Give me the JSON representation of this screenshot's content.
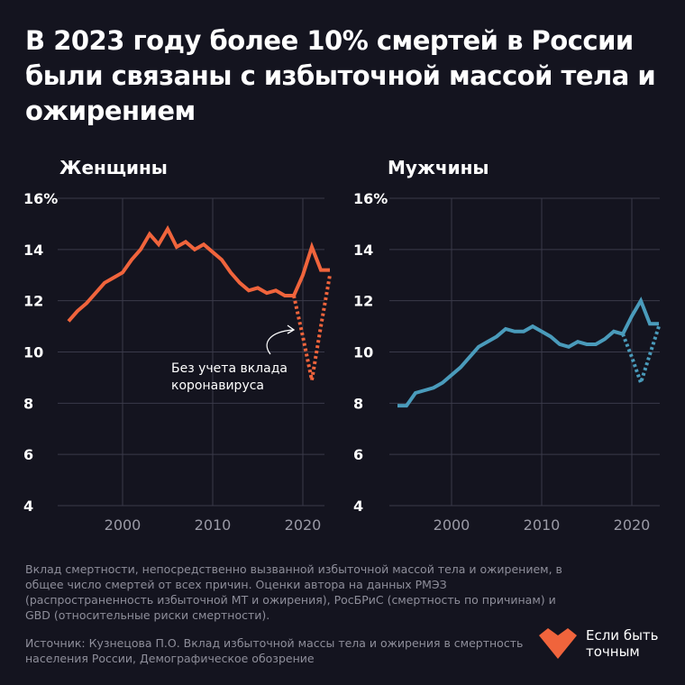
{
  "title": "В 2023 году более 10% смертей в России были связаны с избыточной массой тела и ожирением",
  "colors": {
    "background": "#14141f",
    "women": "#f0643c",
    "men": "#4a9bbb",
    "grid": "#3a3a4a"
  },
  "chart_data": [
    {
      "type": "line",
      "title": "Женщины",
      "ylim": [
        4,
        16
      ],
      "yticks": [
        "16%",
        "14",
        "12",
        "10",
        "8",
        "6",
        "4"
      ],
      "xticks": [
        "2000",
        "2010",
        "2020"
      ],
      "grid": true,
      "annotation": "Без учета вклада коронавируса",
      "series": [
        {
          "style": "solid",
          "x": [
            1994,
            1995,
            1996,
            1997,
            1998,
            1999,
            2000,
            2001,
            2002,
            2003,
            2004,
            2005,
            2006,
            2007,
            2008,
            2009,
            2010,
            2011,
            2012,
            2013,
            2014,
            2015,
            2016,
            2017,
            2018,
            2019,
            2020,
            2021,
            2022,
            2023
          ],
          "values": [
            11.2,
            11.6,
            11.9,
            12.3,
            12.7,
            12.9,
            13.1,
            13.6,
            14.0,
            14.6,
            14.2,
            14.8,
            14.1,
            14.3,
            14.0,
            14.2,
            13.9,
            13.6,
            13.1,
            12.7,
            12.4,
            12.5,
            12.3,
            12.4,
            12.2,
            12.2,
            13.0,
            14.1,
            13.2,
            13.2
          ]
        },
        {
          "style": "dotted",
          "x": [
            2019,
            2020,
            2021,
            2022,
            2023
          ],
          "values": [
            12.2,
            10.6,
            8.9,
            11.0,
            13.0
          ]
        }
      ]
    },
    {
      "type": "line",
      "title": "Мужчины",
      "ylim": [
        4,
        16
      ],
      "yticks": [
        "16%",
        "14",
        "12",
        "10",
        "8",
        "6",
        "4"
      ],
      "xticks": [
        "2000",
        "2010",
        "2020"
      ],
      "grid": true,
      "series": [
        {
          "style": "solid",
          "x": [
            1994,
            1995,
            1996,
            1997,
            1998,
            1999,
            2000,
            2001,
            2002,
            2003,
            2004,
            2005,
            2006,
            2007,
            2008,
            2009,
            2010,
            2011,
            2012,
            2013,
            2014,
            2015,
            2016,
            2017,
            2018,
            2019,
            2020,
            2021,
            2022,
            2023
          ],
          "values": [
            7.9,
            7.9,
            8.4,
            8.5,
            8.6,
            8.8,
            9.1,
            9.4,
            9.8,
            10.2,
            10.4,
            10.6,
            10.9,
            10.8,
            10.8,
            11.0,
            10.8,
            10.6,
            10.3,
            10.2,
            10.4,
            10.3,
            10.3,
            10.5,
            10.8,
            10.7,
            11.4,
            12.0,
            11.1,
            11.1
          ]
        },
        {
          "style": "dotted",
          "x": [
            2019,
            2020,
            2021,
            2022,
            2023
          ],
          "values": [
            10.7,
            9.8,
            8.8,
            9.9,
            11.0
          ]
        }
      ]
    }
  ],
  "note": "Вклад смертности, непосредственно вызванной избыточной массой тела и ожирением, в общее число смертей от всех причин. Оценки автора на данных РМЭЗ (распространенность избыточной МТ и ожирения), РосБРиС (смертность по причинам) и GBD (относительные риски смертности).",
  "source": "Источник: Кузнецова П.О. Вклад избыточной массы тела и ожирения в смертность населения России, Демографическое обозрение",
  "logo": {
    "text_line1": "Если быть",
    "text_line2": "точным"
  }
}
